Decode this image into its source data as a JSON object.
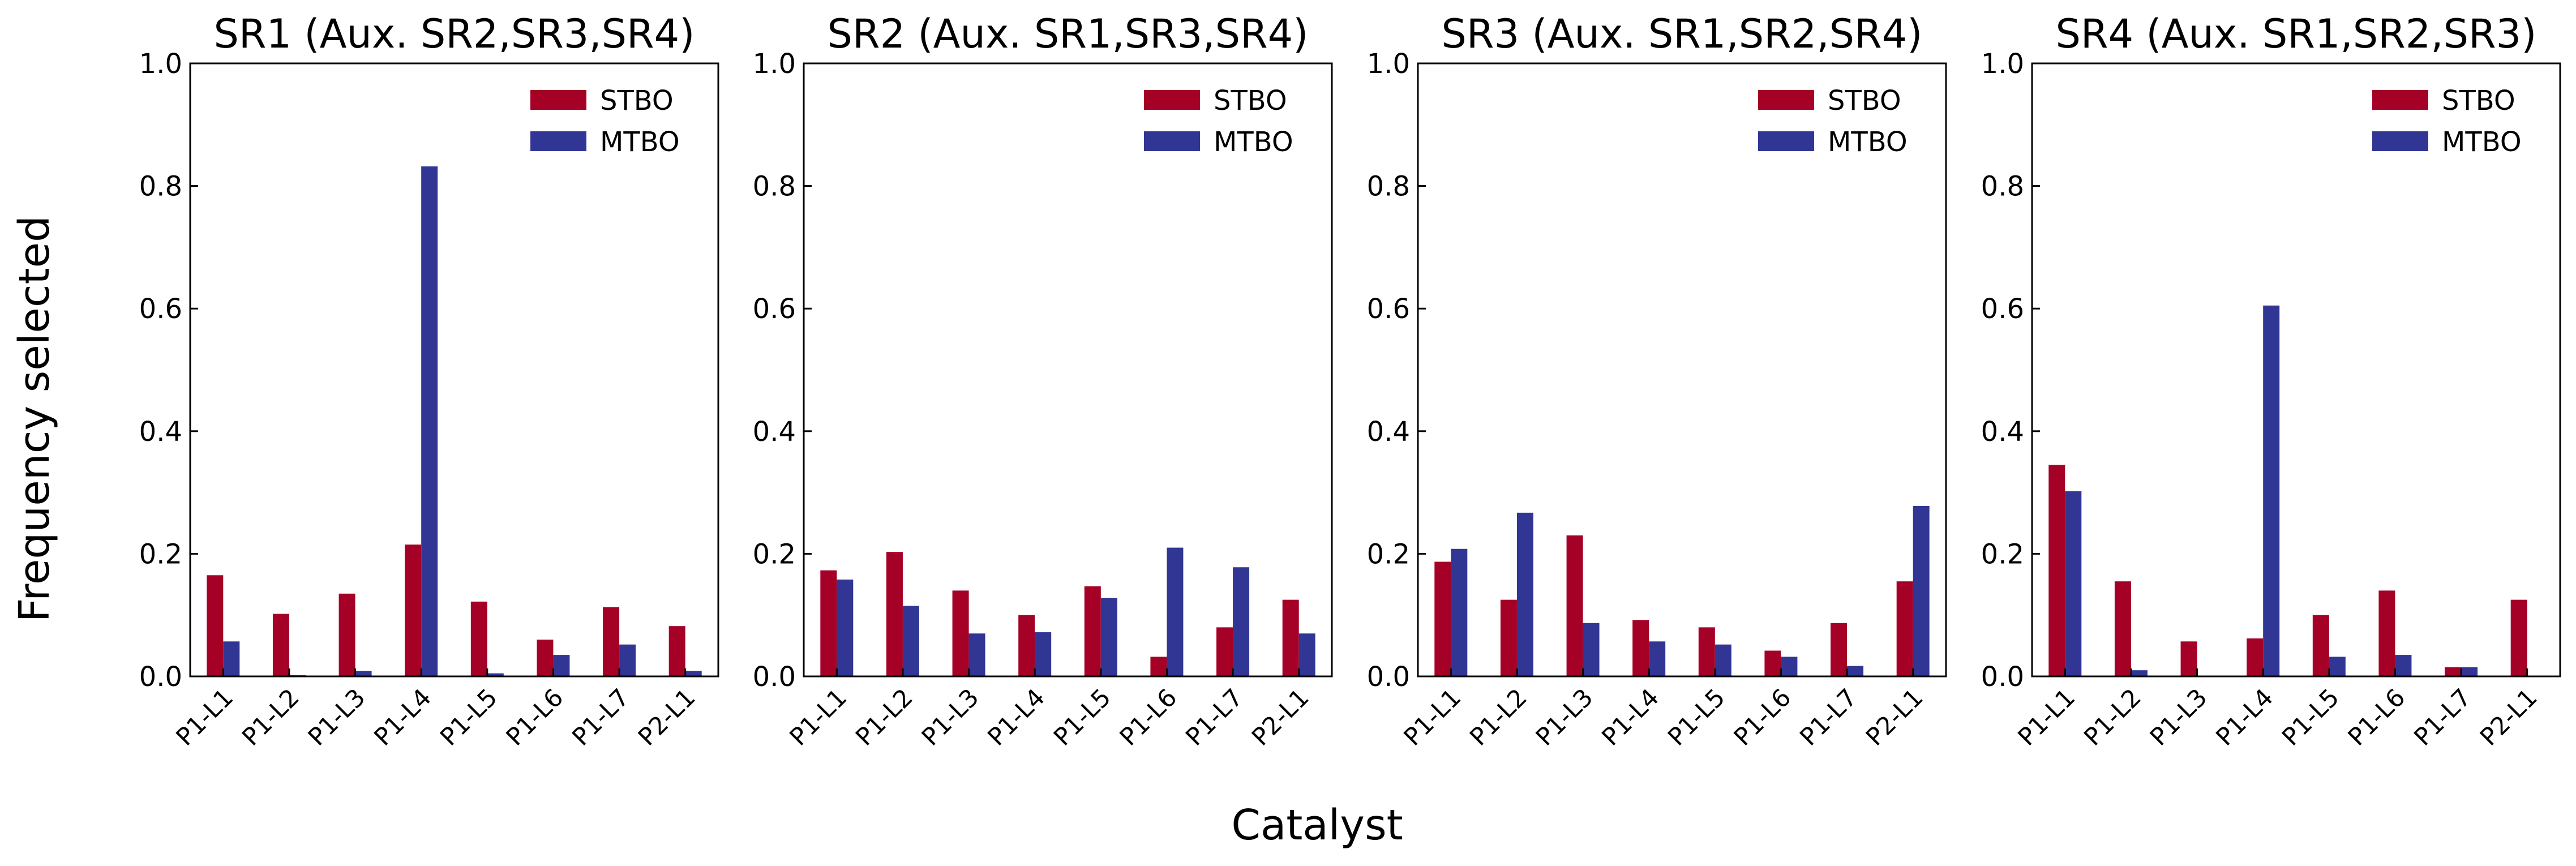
{
  "figure": {
    "ylabel": "Frequency selected",
    "xlabel": "Catalyst"
  },
  "colors": {
    "STBO": "#a50026",
    "MTBO": "#313695"
  },
  "chart_data": [
    {
      "type": "bar",
      "title": "SR1 (Aux. SR2,SR3,SR4)",
      "categories": [
        "P1-L1",
        "P1-L2",
        "P1-L3",
        "P1-L4",
        "P1-L5",
        "P1-L6",
        "P1-L7",
        "P2-L1"
      ],
      "series": [
        {
          "name": "STBO",
          "values": [
            0.165,
            0.102,
            0.135,
            0.215,
            0.122,
            0.06,
            0.113,
            0.082
          ]
        },
        {
          "name": "MTBO",
          "values": [
            0.057,
            0.002,
            0.009,
            0.832,
            0.005,
            0.035,
            0.052,
            0.009
          ]
        }
      ],
      "yticks": [
        "0.0",
        "0.2",
        "0.4",
        "0.6",
        "0.8",
        "1.0"
      ],
      "ylim": [
        0,
        1.0
      ],
      "legend": "top-right",
      "grid": false
    },
    {
      "type": "bar",
      "title": "SR2 (Aux. SR1,SR3,SR4)",
      "categories": [
        "P1-L1",
        "P1-L2",
        "P1-L3",
        "P1-L4",
        "P1-L5",
        "P1-L6",
        "P1-L7",
        "P2-L1"
      ],
      "series": [
        {
          "name": "STBO",
          "values": [
            0.173,
            0.203,
            0.14,
            0.1,
            0.147,
            0.032,
            0.08,
            0.125
          ]
        },
        {
          "name": "MTBO",
          "values": [
            0.158,
            0.115,
            0.07,
            0.072,
            0.128,
            0.21,
            0.178,
            0.07
          ]
        }
      ],
      "yticks": [
        "0.0",
        "0.2",
        "0.4",
        "0.6",
        "0.8",
        "1.0"
      ],
      "ylim": [
        0,
        1.0
      ],
      "legend": "top-right",
      "grid": false
    },
    {
      "type": "bar",
      "title": "SR3 (Aux. SR1,SR2,SR4)",
      "categories": [
        "P1-L1",
        "P1-L2",
        "P1-L3",
        "P1-L4",
        "P1-L5",
        "P1-L6",
        "P1-L7",
        "P2-L1"
      ],
      "series": [
        {
          "name": "STBO",
          "values": [
            0.187,
            0.125,
            0.23,
            0.092,
            0.08,
            0.042,
            0.087,
            0.155
          ]
        },
        {
          "name": "MTBO",
          "values": [
            0.208,
            0.267,
            0.087,
            0.057,
            0.052,
            0.032,
            0.017,
            0.278
          ]
        }
      ],
      "yticks": [
        "0.0",
        "0.2",
        "0.4",
        "0.6",
        "0.8",
        "1.0"
      ],
      "ylim": [
        0,
        1.0
      ],
      "legend": "top-right",
      "grid": false
    },
    {
      "type": "bar",
      "title": "SR4 (Aux. SR1,SR2,SR3)",
      "categories": [
        "P1-L1",
        "P1-L2",
        "P1-L3",
        "P1-L4",
        "P1-L5",
        "P1-L6",
        "P1-L7",
        "P2-L1"
      ],
      "series": [
        {
          "name": "STBO",
          "values": [
            0.345,
            0.155,
            0.057,
            0.062,
            0.1,
            0.14,
            0.015,
            0.125
          ]
        },
        {
          "name": "MTBO",
          "values": [
            0.302,
            0.01,
            0.0,
            0.605,
            0.032,
            0.035,
            0.015,
            0.0
          ]
        }
      ],
      "yticks": [
        "0.0",
        "0.2",
        "0.4",
        "0.6",
        "0.8",
        "1.0"
      ],
      "ylim": [
        0,
        1.0
      ],
      "legend": "top-right",
      "grid": false
    }
  ]
}
